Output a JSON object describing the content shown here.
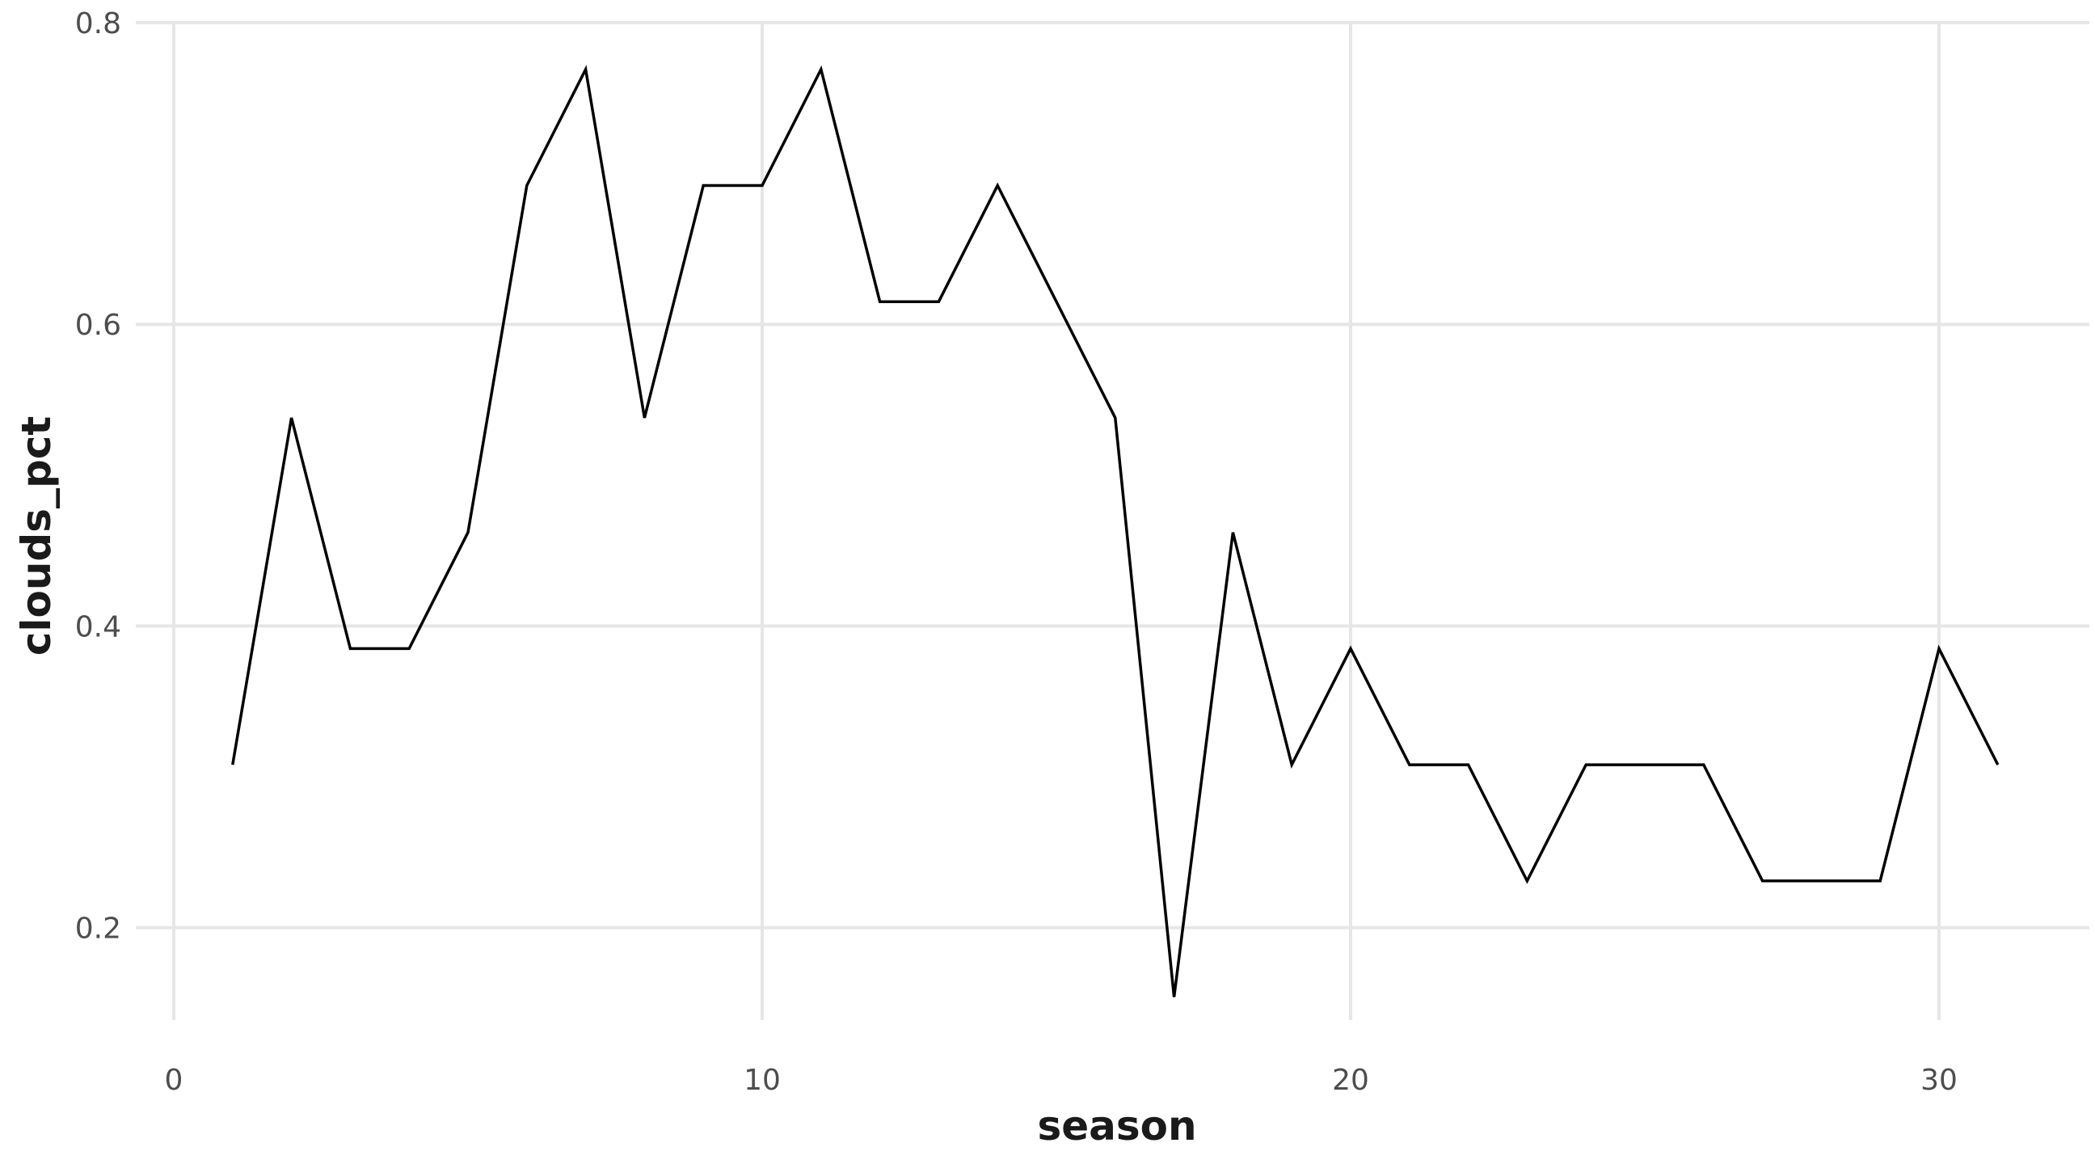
{
  "chart_data": {
    "type": "line",
    "title": "",
    "xlabel": "season",
    "ylabel": "clouds_pct",
    "xlim": [
      0,
      32.5
    ],
    "ylim": [
      0.118,
      0.8
    ],
    "x_ticks": [
      0,
      10,
      20,
      30
    ],
    "x_tick_labels": [
      "0",
      "10",
      "20",
      "30"
    ],
    "y_ticks": [
      0.2,
      0.4,
      0.6,
      0.8
    ],
    "y_tick_labels": [
      "0.2",
      "0.4",
      "0.6",
      "0.8"
    ],
    "grid": true,
    "legend": "none",
    "line_color": "#000000",
    "series": [
      {
        "x": [
          1,
          2,
          3,
          4,
          5,
          6,
          7,
          8,
          9,
          10,
          11,
          12,
          13,
          14,
          15,
          16,
          17,
          18,
          19,
          20,
          21,
          22,
          23,
          24,
          25,
          26,
          27,
          28,
          29,
          30,
          31
        ],
        "values": [
          0.308,
          0.538,
          0.385,
          0.385,
          0.462,
          0.692,
          0.769,
          0.538,
          0.692,
          0.692,
          0.769,
          0.615,
          0.615,
          0.692,
          0.615,
          0.538,
          0.154,
          0.462,
          0.308,
          0.385,
          0.308,
          0.308,
          0.231,
          0.308,
          0.308,
          0.308,
          0.231,
          0.231,
          0.231,
          0.385,
          0.308
        ]
      }
    ]
  }
}
